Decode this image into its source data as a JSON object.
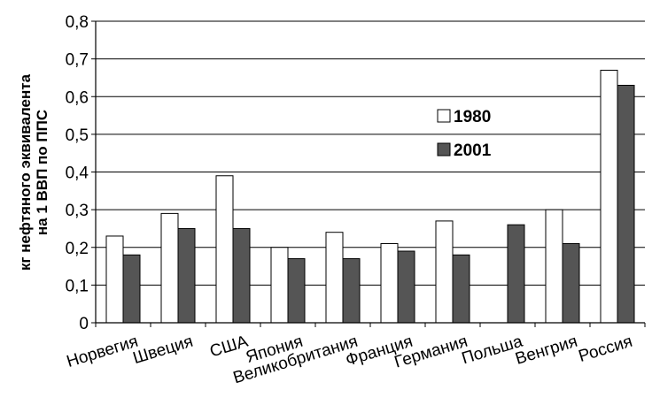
{
  "chart_data": {
    "type": "bar",
    "ylabel_line1": "кг нефтяного эквивалента",
    "ylabel_line2": "на 1 ВВП по ППС",
    "ylim": [
      0,
      0.8
    ],
    "yticks": [
      "0",
      "0,1",
      "0,2",
      "0,3",
      "0,4",
      "0,5",
      "0,6",
      "0,7",
      "0,8"
    ],
    "grid": true,
    "legend_position": "right",
    "categories": [
      "Норвегия",
      "Швеция",
      "США",
      "Япония",
      "Великобритания",
      "Франция",
      "Германия",
      "Польша",
      "Венгрия",
      "Россия"
    ],
    "series": [
      {
        "name": "1980",
        "color": "#ffffff",
        "values": [
          0.23,
          0.29,
          0.39,
          0.2,
          0.24,
          0.21,
          0.27,
          null,
          0.3,
          0.67
        ]
      },
      {
        "name": "2001",
        "color": "#555555",
        "values": [
          0.18,
          0.25,
          0.25,
          0.17,
          0.17,
          0.19,
          0.18,
          0.26,
          0.21,
          0.63
        ]
      }
    ]
  }
}
